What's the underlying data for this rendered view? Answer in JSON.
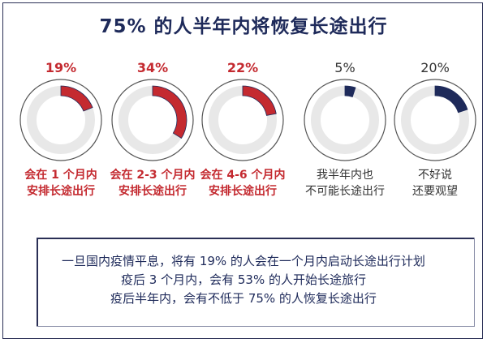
{
  "title": "75% 的人半年内将恢复长途出行",
  "chart_data": {
    "type": "pie",
    "title": "75% 的人半年内将恢复长途出行",
    "items": [
      {
        "value": 19,
        "value_label": "19%",
        "label_lines": [
          "会在 1 个月内",
          "安排长途出行"
        ],
        "color": "#c42a30"
      },
      {
        "value": 34,
        "value_label": "34%",
        "label_lines": [
          "会在 2-3 个月内",
          "安排长途出行"
        ],
        "color": "#c42a30"
      },
      {
        "value": 22,
        "value_label": "22%",
        "label_lines": [
          "会在 4-6 个月内",
          "安排长途出行"
        ],
        "color": "#c42a30"
      },
      {
        "value": 5,
        "value_label": "5%",
        "label_lines": [
          "我半年内也",
          "不可能长途出行"
        ],
        "color": "#1e2a5a"
      },
      {
        "value": 20,
        "value_label": "20%",
        "label_lines": [
          "不好说",
          "还要观望"
        ],
        "color": "#1e2a5a"
      }
    ]
  },
  "summary": {
    "lines": [
      "一旦国内疫情平息，将有 19% 的人会在一个月内启动长途出行计划",
      "疫后 3 个月内，会有 53% 的人开始长途旅行",
      "疫后半年内，会有不低于 75% 的人恢复长途出行"
    ]
  }
}
